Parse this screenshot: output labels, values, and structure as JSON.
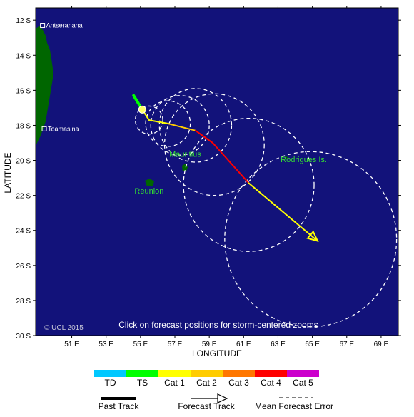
{
  "axes": {
    "x_title": "LONGITUDE",
    "y_title": "LATITUDE",
    "x_ticks": [
      {
        "value": 51,
        "label": "51 E"
      },
      {
        "value": 53,
        "label": "53 E"
      },
      {
        "value": 55,
        "label": "55 E"
      },
      {
        "value": 57,
        "label": "57 E"
      },
      {
        "value": 59,
        "label": "59 E"
      },
      {
        "value": 61,
        "label": "61 E"
      },
      {
        "value": 63,
        "label": "63 E"
      },
      {
        "value": 65,
        "label": "65 E"
      },
      {
        "value": 67,
        "label": "67 E"
      },
      {
        "value": 69,
        "label": "69 E"
      }
    ],
    "y_ticks": [
      {
        "value": -12,
        "label": "12 S"
      },
      {
        "value": -14,
        "label": "14 S"
      },
      {
        "value": -16,
        "label": "16 S"
      },
      {
        "value": -18,
        "label": "18 S"
      },
      {
        "value": -20,
        "label": "20 S"
      },
      {
        "value": -22,
        "label": "22 S"
      },
      {
        "value": -24,
        "label": "24 S"
      },
      {
        "value": -26,
        "label": "26 S"
      },
      {
        "value": -28,
        "label": "28 S"
      },
      {
        "value": -30,
        "label": "30 S"
      }
    ],
    "lon_range": [
      48.9,
      70.0
    ],
    "lat_range": [
      -30.0,
      -11.3
    ]
  },
  "places": [
    {
      "name": "Antseranana",
      "lon": 49.3,
      "lat": -12.3
    },
    {
      "name": "Toamasina",
      "lon": 49.4,
      "lat": -18.2
    }
  ],
  "islands": [
    {
      "name": "Mauritius",
      "lon": 57.6,
      "lat": -20.3,
      "label_lon": 57.6,
      "label_lat": -19.8
    },
    {
      "name": "Reunion",
      "lon": 55.5,
      "lat": -21.1,
      "label_lon": 55.5,
      "label_lat": -21.9
    },
    {
      "name": "Rodrigues Is.",
      "lon": 63.4,
      "lat": -19.7,
      "label_lon": 64.5,
      "label_lat": -20.1
    }
  ],
  "past_track": {
    "category": "TS",
    "points": [
      [
        54.6,
        -16.3
      ],
      [
        55.1,
        -17.1
      ]
    ]
  },
  "current_position": {
    "lon": 55.1,
    "lat": -17.1
  },
  "forecast_track": {
    "points": [
      {
        "lon": 55.1,
        "lat": -17.1,
        "category": "Cat 1"
      },
      {
        "lon": 55.5,
        "lat": -17.7,
        "category": "Cat 1"
      },
      {
        "lon": 56.6,
        "lat": -17.9,
        "category": "Cat 2"
      },
      {
        "lon": 58.2,
        "lat": -18.3,
        "category": "Cat 4"
      },
      {
        "lon": 59.2,
        "lat": -19.0,
        "category": "Cat 4"
      },
      {
        "lon": 61.3,
        "lat": -21.3,
        "category": "Cat 1"
      },
      {
        "lon": 65.3,
        "lat": -24.6,
        "category": "Cat 1"
      }
    ]
  },
  "error_circles": [
    {
      "lon": 55.5,
      "lat": -17.7,
      "radius_deg": 0.8
    },
    {
      "lon": 56.6,
      "lat": -17.9,
      "radius_deg": 1.3
    },
    {
      "lon": 57.3,
      "lat": -18.0,
      "radius_deg": 1.7
    },
    {
      "lon": 58.2,
      "lat": -18.0,
      "radius_deg": 2.1
    },
    {
      "lon": 59.3,
      "lat": -19.1,
      "radius_deg": 2.9
    },
    {
      "lon": 61.3,
      "lat": -21.4,
      "radius_deg": 3.8
    },
    {
      "lon": 64.9,
      "lat": -24.5,
      "radius_deg": 5.0
    }
  ],
  "copyright": "© UCL 2015",
  "hint": "Click on forecast positions for storm-centered zooms",
  "colors": {
    "ocean": "#12127a",
    "land": "#006600",
    "TD": "#00c8ff",
    "TS": "#00ff00",
    "Cat 1": "#ffff00",
    "Cat 2": "#ffcc00",
    "Cat 3": "#ff7700",
    "Cat 4": "#ff0000",
    "Cat 5": "#cc00cc",
    "circle": "#ffffff",
    "position": "#ffff66"
  },
  "legend": {
    "scale": [
      "TD",
      "TS",
      "Cat 1",
      "Cat 2",
      "Cat 3",
      "Cat 4",
      "Cat 5"
    ],
    "past_track_label": "Past Track",
    "forecast_track_label": "Forecast Track",
    "error_label": "Mean Forecast Error"
  }
}
